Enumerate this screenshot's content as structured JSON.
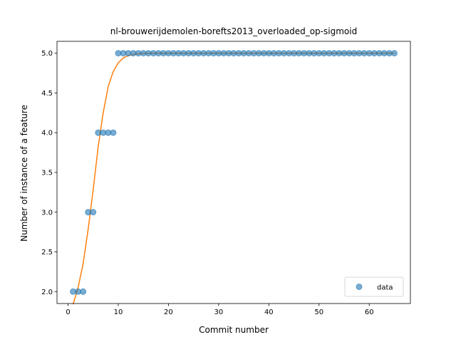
{
  "chart_data": {
    "type": "scatter",
    "title": "nl-brouwerijdemolen-borefts2013_overloaded_op-sigmoid",
    "xlabel": "Commit number",
    "ylabel": "Number of instance of a feature",
    "xlim": [
      -2.2,
      68.2
    ],
    "ylim": [
      1.85,
      5.15
    ],
    "xticks": [
      0,
      10,
      20,
      30,
      40,
      50,
      60
    ],
    "yticks": [
      2.0,
      2.5,
      3.0,
      3.5,
      4.0,
      4.5,
      5.0
    ],
    "xtick_labels": [
      "0",
      "10",
      "20",
      "30",
      "40",
      "50",
      "60"
    ],
    "ytick_labels": [
      "2.0",
      "2.5",
      "3.0",
      "3.5",
      "4.0",
      "4.5",
      "5.0"
    ],
    "legend_position": "lower-right",
    "grid": false,
    "series": [
      {
        "name": "data",
        "kind": "scatter",
        "color": "#1f77b4",
        "x": [
          1,
          2,
          3,
          4,
          5,
          6,
          7,
          8,
          9,
          10,
          11,
          12,
          13,
          14,
          15,
          16,
          17,
          18,
          19,
          20,
          21,
          22,
          23,
          24,
          25,
          26,
          27,
          28,
          29,
          30,
          31,
          32,
          33,
          34,
          35,
          36,
          37,
          38,
          39,
          40,
          41,
          42,
          43,
          44,
          45,
          46,
          47,
          48,
          49,
          50,
          51,
          52,
          53,
          54,
          55,
          56,
          57,
          58,
          59,
          60,
          61,
          62,
          63,
          64,
          65
        ],
        "y": [
          2,
          2,
          2,
          3,
          3,
          4,
          4,
          4,
          4,
          5,
          5,
          5,
          5,
          5,
          5,
          5,
          5,
          5,
          5,
          5,
          5,
          5,
          5,
          5,
          5,
          5,
          5,
          5,
          5,
          5,
          5,
          5,
          5,
          5,
          5,
          5,
          5,
          5,
          5,
          5,
          5,
          5,
          5,
          5,
          5,
          5,
          5,
          5,
          5,
          5,
          5,
          5,
          5,
          5,
          5,
          5,
          5,
          5,
          5,
          5,
          5,
          5,
          5,
          5,
          5
        ]
      },
      {
        "kind": "line",
        "color": "#ff7f0e",
        "x": [
          1,
          2,
          3,
          4,
          5,
          6,
          7,
          8,
          9,
          10,
          11,
          12,
          13,
          14,
          15,
          16,
          17,
          18,
          19,
          20,
          25,
          30,
          40,
          50,
          60,
          65
        ],
        "y": [
          1.84,
          2.05,
          2.35,
          2.78,
          3.28,
          3.82,
          4.25,
          4.58,
          4.77,
          4.88,
          4.94,
          4.97,
          4.985,
          4.993,
          4.997,
          4.999,
          5.0,
          5.0,
          5.0,
          5.0,
          5.0,
          5.0,
          5.0,
          5.0,
          5.0,
          5.0
        ]
      }
    ]
  }
}
